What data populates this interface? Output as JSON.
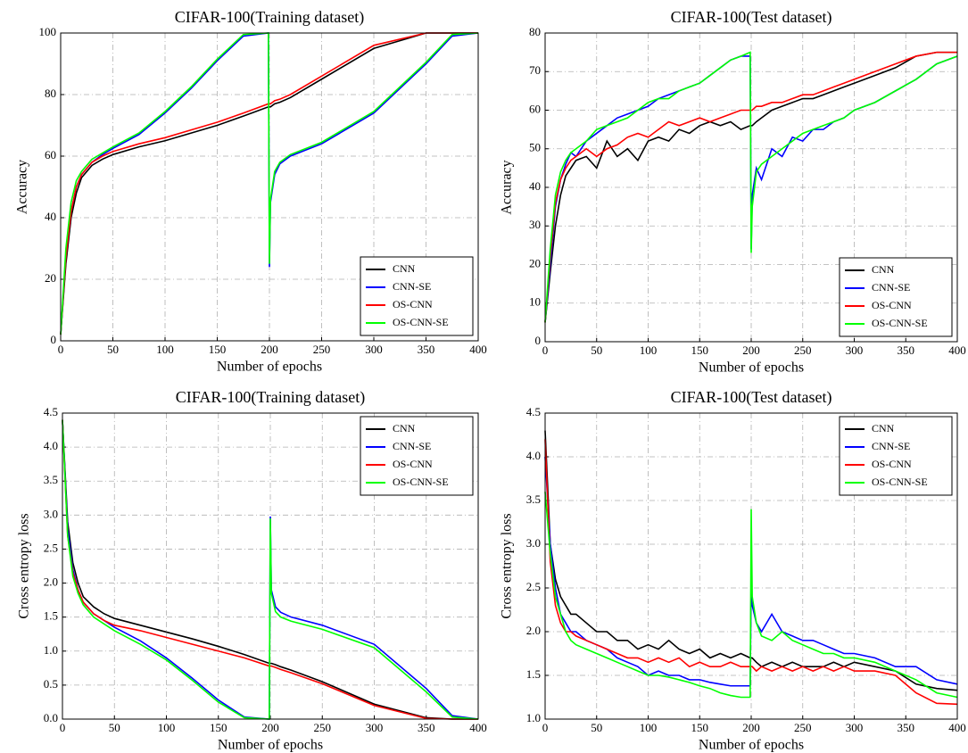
{
  "chart_data": [
    {
      "type": "line",
      "title": "CIFAR-100(Training dataset)",
      "x_label": "Number of epochs",
      "y_label": "Accuracy",
      "x": [
        0,
        5,
        10,
        15,
        20,
        30,
        40,
        50,
        75,
        100,
        125,
        150,
        175,
        199,
        200,
        201,
        205,
        210,
        220,
        250,
        300,
        350,
        375,
        400
      ],
      "series": [
        {
          "name": "CNN",
          "color": "#000000",
          "values": [
            2,
            25,
            40,
            48,
            53,
            57,
            59,
            60.5,
            63,
            65,
            67.5,
            70,
            73,
            76,
            76,
            76,
            77,
            77.5,
            79,
            85,
            95,
            100,
            100,
            100
          ]
        },
        {
          "name": "CNN-SE",
          "color": "#0000ff",
          "values": [
            2,
            27,
            42,
            50,
            54,
            58,
            60.5,
            62.5,
            67,
            74,
            82,
            91,
            99,
            100,
            24,
            45,
            54,
            57.5,
            60,
            64,
            74,
            90,
            99,
            100
          ]
        },
        {
          "name": "OS-CNN",
          "color": "#ff0000",
          "values": [
            2,
            27,
            42,
            50,
            54,
            58,
            60,
            61.5,
            64,
            66,
            68.5,
            71,
            74,
            77,
            77,
            77,
            78,
            78.5,
            80,
            86,
            96,
            100,
            100,
            100
          ]
        },
        {
          "name": "OS-CNN-SE",
          "color": "#00ff00",
          "values": [
            2,
            30,
            45,
            52,
            55,
            59,
            61,
            63,
            67.5,
            74.5,
            82.5,
            91.5,
            99.5,
            100,
            25,
            46,
            55,
            58,
            60.5,
            64.5,
            74.5,
            90.5,
            99.5,
            100
          ]
        }
      ],
      "xlim": [
        0,
        400
      ],
      "xticks": [
        0,
        50,
        100,
        150,
        200,
        250,
        300,
        350,
        400
      ],
      "ylim": [
        0,
        100
      ],
      "yticks": [
        0,
        20,
        40,
        60,
        80,
        100
      ],
      "grid": true,
      "legend": "lower right"
    },
    {
      "type": "line",
      "title": "CIFAR-100(Test dataset)",
      "x_label": "Number of epochs",
      "y_label": "Accuracy",
      "x": [
        0,
        5,
        10,
        15,
        20,
        25,
        30,
        40,
        50,
        60,
        70,
        80,
        90,
        100,
        110,
        120,
        130,
        140,
        150,
        160,
        170,
        180,
        190,
        199,
        200,
        201,
        205,
        210,
        220,
        230,
        240,
        250,
        260,
        270,
        280,
        290,
        300,
        320,
        340,
        360,
        380,
        400
      ],
      "series": [
        {
          "name": "CNN",
          "color": "#000000",
          "values": [
            5,
            18,
            30,
            38,
            43,
            45,
            47,
            48,
            45,
            52,
            48,
            50,
            47,
            52,
            53,
            52,
            55,
            54,
            56,
            57,
            56,
            57,
            55,
            56,
            56,
            56,
            57,
            58,
            60,
            61,
            62,
            63,
            63,
            64,
            65,
            66,
            67,
            69,
            71,
            74,
            75,
            75
          ]
        },
        {
          "name": "CNN-SE",
          "color": "#0000ff",
          "values": [
            5,
            20,
            35,
            42,
            46,
            49,
            48,
            52,
            54,
            56,
            58,
            59,
            60,
            61,
            63,
            64,
            65,
            66,
            67,
            69,
            71,
            73,
            74,
            74,
            24,
            38,
            45,
            42,
            50,
            48,
            53,
            52,
            55,
            55,
            57,
            58,
            60,
            62,
            65,
            68,
            72,
            74
          ]
        },
        {
          "name": "OS-CNN",
          "color": "#ff0000",
          "values": [
            5,
            22,
            36,
            42,
            45,
            47,
            48,
            50,
            48,
            50,
            51,
            53,
            54,
            53,
            55,
            57,
            56,
            57,
            58,
            57,
            58,
            59,
            60,
            60,
            60,
            60,
            61,
            61,
            62,
            62,
            63,
            64,
            64,
            65,
            66,
            67,
            68,
            70,
            72,
            74,
            75,
            75
          ]
        },
        {
          "name": "OS-CNN-SE",
          "color": "#00ff00",
          "values": [
            5,
            24,
            38,
            44,
            47,
            49,
            50,
            52,
            55,
            56,
            57,
            58,
            60,
            62,
            63,
            63,
            65,
            66,
            67,
            69,
            71,
            73,
            74,
            75,
            23,
            35,
            44,
            46,
            48,
            50,
            52,
            54,
            55,
            56,
            57,
            58,
            60,
            62,
            65,
            68,
            72,
            74
          ]
        }
      ],
      "xlim": [
        0,
        400
      ],
      "xticks": [
        0,
        50,
        100,
        150,
        200,
        250,
        300,
        350,
        400
      ],
      "ylim": [
        0,
        80
      ],
      "yticks": [
        0,
        10,
        20,
        30,
        40,
        50,
        60,
        70,
        80
      ],
      "grid": true,
      "legend": "lower right"
    },
    {
      "type": "line",
      "title": "CIFAR-100(Training dataset)",
      "x_label": "Number of epochs",
      "y_label": "Cross entropy loss",
      "x": [
        0,
        5,
        10,
        15,
        20,
        30,
        40,
        50,
        75,
        100,
        125,
        150,
        175,
        199,
        200,
        201,
        205,
        210,
        220,
        250,
        300,
        350,
        375,
        400
      ],
      "series": [
        {
          "name": "CNN",
          "color": "#000000",
          "values": [
            4.4,
            2.9,
            2.3,
            2.0,
            1.8,
            1.65,
            1.55,
            1.48,
            1.38,
            1.28,
            1.18,
            1.07,
            0.95,
            0.82,
            0.82,
            0.82,
            0.8,
            0.77,
            0.72,
            0.55,
            0.22,
            0.02,
            0,
            0
          ]
        },
        {
          "name": "CNN-SE",
          "color": "#0000ff",
          "values": [
            4.4,
            2.8,
            2.2,
            1.9,
            1.72,
            1.55,
            1.45,
            1.35,
            1.15,
            0.9,
            0.6,
            0.28,
            0.03,
            0,
            2.98,
            1.9,
            1.65,
            1.57,
            1.5,
            1.38,
            1.1,
            0.45,
            0.05,
            0
          ]
        },
        {
          "name": "OS-CNN",
          "color": "#ff0000",
          "values": [
            4.4,
            2.7,
            2.15,
            1.9,
            1.72,
            1.55,
            1.45,
            1.38,
            1.3,
            1.2,
            1.1,
            1.0,
            0.9,
            0.78,
            0.78,
            0.78,
            0.76,
            0.73,
            0.68,
            0.52,
            0.2,
            0.01,
            0,
            0
          ]
        },
        {
          "name": "OS-CNN-SE",
          "color": "#00ff00",
          "values": [
            4.4,
            2.7,
            2.1,
            1.85,
            1.68,
            1.5,
            1.4,
            1.3,
            1.1,
            0.87,
            0.57,
            0.25,
            0.02,
            0,
            2.95,
            1.85,
            1.58,
            1.5,
            1.44,
            1.32,
            1.05,
            0.4,
            0.03,
            0
          ]
        }
      ],
      "xlim": [
        0,
        400
      ],
      "xticks": [
        0,
        50,
        100,
        150,
        200,
        250,
        300,
        350,
        400
      ],
      "ylim": [
        0,
        4.5
      ],
      "yticks": [
        {
          "value": 0,
          "label": "0.0"
        },
        0.5,
        {
          "value": 1,
          "label": "1.0"
        },
        1.5,
        {
          "value": 2,
          "label": "2.0"
        },
        2.5,
        {
          "value": 3,
          "label": "3.0"
        },
        3.5,
        {
          "value": 4,
          "label": "4.0"
        },
        4.5
      ],
      "grid": true,
      "legend": "upper right"
    },
    {
      "type": "line",
      "title": "CIFAR-100(Test dataset)",
      "x_label": "Number of epochs",
      "y_label": "Cross entropy loss",
      "x": [
        0,
        5,
        10,
        15,
        20,
        25,
        30,
        40,
        50,
        60,
        70,
        80,
        90,
        100,
        110,
        120,
        130,
        140,
        150,
        160,
        170,
        180,
        190,
        199,
        200,
        201,
        205,
        210,
        220,
        230,
        240,
        250,
        260,
        270,
        280,
        290,
        300,
        320,
        340,
        360,
        380,
        400
      ],
      "series": [
        {
          "name": "CNN",
          "color": "#000000",
          "values": [
            4.3,
            3.0,
            2.6,
            2.4,
            2.3,
            2.2,
            2.2,
            2.1,
            2.0,
            2.0,
            1.9,
            1.9,
            1.8,
            1.85,
            1.8,
            1.9,
            1.8,
            1.75,
            1.8,
            1.7,
            1.75,
            1.7,
            1.75,
            1.7,
            1.7,
            1.7,
            1.65,
            1.6,
            1.65,
            1.6,
            1.65,
            1.6,
            1.6,
            1.6,
            1.65,
            1.6,
            1.65,
            1.6,
            1.55,
            1.4,
            1.35,
            1.33
          ]
        },
        {
          "name": "CNN-SE",
          "color": "#0000ff",
          "values": [
            4.0,
            3.0,
            2.5,
            2.2,
            2.1,
            2.0,
            2.0,
            1.9,
            1.85,
            1.8,
            1.7,
            1.65,
            1.6,
            1.5,
            1.55,
            1.5,
            1.5,
            1.45,
            1.45,
            1.42,
            1.4,
            1.38,
            1.38,
            1.38,
            2.6,
            2.3,
            2.1,
            2.0,
            2.2,
            2.0,
            1.95,
            1.9,
            1.9,
            1.85,
            1.8,
            1.75,
            1.75,
            1.7,
            1.6,
            1.6,
            1.45,
            1.4
          ]
        },
        {
          "name": "OS-CNN",
          "color": "#ff0000",
          "values": [
            4.2,
            2.8,
            2.3,
            2.1,
            2.0,
            2.0,
            1.95,
            1.9,
            1.85,
            1.8,
            1.75,
            1.7,
            1.7,
            1.65,
            1.7,
            1.65,
            1.7,
            1.6,
            1.65,
            1.6,
            1.6,
            1.65,
            1.6,
            1.6,
            1.6,
            1.6,
            1.55,
            1.6,
            1.55,
            1.6,
            1.55,
            1.6,
            1.55,
            1.6,
            1.55,
            1.6,
            1.55,
            1.55,
            1.5,
            1.3,
            1.18,
            1.17
          ]
        },
        {
          "name": "OS-CNN-SE",
          "color": "#00ff00",
          "values": [
            3.6,
            2.9,
            2.4,
            2.2,
            2.0,
            1.9,
            1.85,
            1.8,
            1.75,
            1.7,
            1.65,
            1.6,
            1.55,
            1.5,
            1.5,
            1.48,
            1.45,
            1.42,
            1.38,
            1.35,
            1.3,
            1.27,
            1.25,
            1.25,
            3.4,
            2.4,
            2.1,
            1.95,
            1.9,
            2.0,
            1.9,
            1.85,
            1.8,
            1.75,
            1.75,
            1.7,
            1.7,
            1.65,
            1.55,
            1.45,
            1.3,
            1.25
          ]
        }
      ],
      "xlim": [
        0,
        400
      ],
      "xticks": [
        0,
        50,
        100,
        150,
        200,
        250,
        300,
        350,
        400
      ],
      "ylim": [
        1,
        4.5
      ],
      "yticks": [
        {
          "value": 1,
          "label": "1.0"
        },
        1.5,
        {
          "value": 2,
          "label": "2.0"
        },
        2.5,
        {
          "value": 3,
          "label": "3.0"
        },
        3.5,
        {
          "value": 4,
          "label": "4.0"
        },
        4.5
      ],
      "grid": true,
      "legend": "upper right"
    }
  ]
}
